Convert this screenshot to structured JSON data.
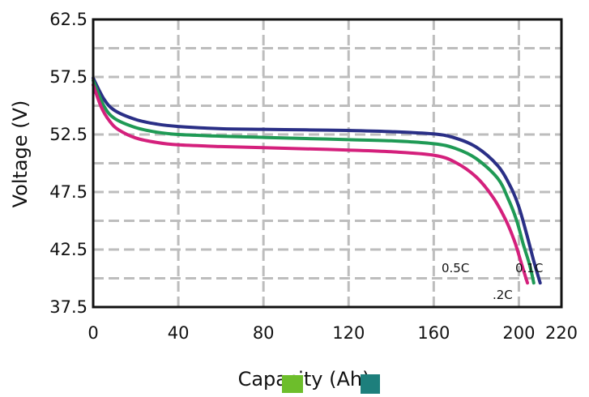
{
  "chart_data": {
    "type": "line",
    "title": "",
    "xlabel": "Capacity (Ah)",
    "ylabel": "Voltage (V)",
    "xlim": [
      0,
      220
    ],
    "ylim": [
      37.5,
      62.5
    ],
    "xticks": [
      "0",
      "40",
      "80",
      "120",
      "160",
      "200",
      "220"
    ],
    "xtick_values": [
      0,
      40,
      80,
      120,
      160,
      200,
      220
    ],
    "yticks": [
      "62.5",
      "57.5",
      "52.5",
      "47.5",
      "42.5",
      "37.5"
    ],
    "ytick_values": [
      62.5,
      57.5,
      52.5,
      47.5,
      42.5,
      37.5
    ],
    "grid": true,
    "series": [
      {
        "name": "0.1C",
        "color": "#2a2f86",
        "x": [
          0,
          5,
          10,
          20,
          30,
          40,
          60,
          80,
          100,
          120,
          140,
          160,
          170,
          180,
          190,
          196,
          200,
          204,
          207,
          210
        ],
        "y": [
          57.4,
          55.6,
          54.6,
          53.8,
          53.4,
          53.2,
          53.0,
          52.95,
          52.9,
          52.85,
          52.75,
          52.55,
          52.2,
          51.4,
          49.8,
          48.0,
          46.2,
          43.6,
          41.5,
          39.6
        ]
      },
      {
        "name": ".2C",
        "color": "#1f9a55",
        "x": [
          0,
          5,
          10,
          20,
          30,
          40,
          60,
          80,
          100,
          120,
          140,
          160,
          170,
          180,
          190,
          195,
          199,
          202,
          205,
          207
        ],
        "y": [
          57.2,
          55.0,
          53.9,
          53.1,
          52.7,
          52.5,
          52.35,
          52.25,
          52.15,
          52.05,
          51.95,
          51.7,
          51.3,
          50.4,
          48.7,
          46.9,
          45.0,
          43.0,
          41.2,
          39.6
        ]
      },
      {
        "name": "0.5C",
        "color": "#d4207c",
        "x": [
          0,
          4,
          8,
          12,
          20,
          30,
          40,
          60,
          80,
          100,
          120,
          140,
          160,
          170,
          180,
          188,
          194,
          198,
          201,
          204
        ],
        "y": [
          56.8,
          54.8,
          53.6,
          52.9,
          52.2,
          51.8,
          51.6,
          51.45,
          51.35,
          51.25,
          51.15,
          51.0,
          50.7,
          50.1,
          48.8,
          47.0,
          45.0,
          43.2,
          41.4,
          39.6
        ]
      }
    ],
    "annotations": [
      "0.5C",
      "0.1C",
      ".2C"
    ],
    "legend_swatches": [
      "#6dbe2b",
      "#1d7f7c"
    ]
  }
}
